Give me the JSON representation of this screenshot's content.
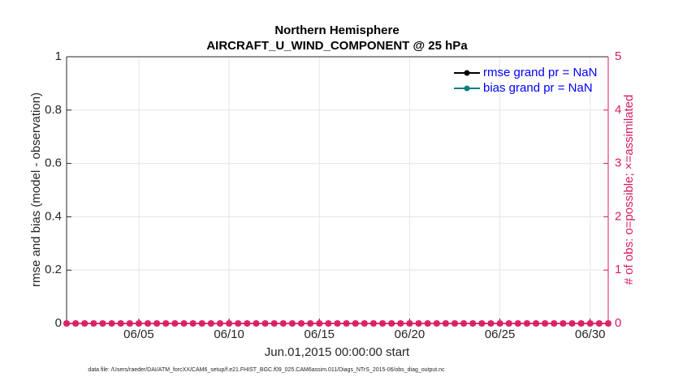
{
  "chart_data": {
    "type": "line",
    "title": "Northern Hemisphere",
    "subtitle": "AIRCRAFT_U_WIND_COMPONENT @ 25 hPa",
    "xlabel": "Jun.01,2015 00:00:00 start",
    "ylabel": "rmse and bias (model - observation)",
    "y2label": "# of obs: o=possible; ×=assimilated",
    "footnote": "data file: /Users/raeder/DAI/ATM_forcXX/CAM6_setup/f.e21.FHIST_BGC.f09_025.CAM6assim.011/Diags_NTrS_2015-06/obs_diag_output.nc",
    "xlim": [
      1,
      31
    ],
    "xticks": [
      {
        "value": 5,
        "label": "06/05"
      },
      {
        "value": 10,
        "label": "06/10"
      },
      {
        "value": 15,
        "label": "06/15"
      },
      {
        "value": 20,
        "label": "06/20"
      },
      {
        "value": 25,
        "label": "06/25"
      },
      {
        "value": 30,
        "label": "06/30"
      }
    ],
    "ylim": [
      0,
      1
    ],
    "yticks": [
      0,
      0.2,
      0.4,
      0.6,
      0.8,
      1
    ],
    "y2lim": [
      0,
      5
    ],
    "y2ticks": [
      0,
      1,
      2,
      3,
      4,
      5
    ],
    "y2color": "#d81b60",
    "grid": true,
    "legend": "northeast",
    "x": [
      1,
      1.5,
      2,
      2.5,
      3,
      3.5,
      4,
      4.5,
      5,
      5.5,
      6,
      6.5,
      7,
      7.5,
      8,
      8.5,
      9,
      9.5,
      10,
      10.5,
      11,
      11.5,
      12,
      12.5,
      13,
      13.5,
      14,
      14.5,
      15,
      15.5,
      16,
      16.5,
      17,
      17.5,
      18,
      18.5,
      19,
      19.5,
      20,
      20.5,
      21,
      21.5,
      22,
      22.5,
      23,
      23.5,
      24,
      24.5,
      25,
      25.5,
      26,
      26.5,
      27,
      27.5,
      28,
      28.5,
      29,
      29.5,
      30,
      30.5,
      31
    ],
    "series": [
      {
        "name": "rmse grand pr = NaN",
        "color": "#000000",
        "marker": "dot",
        "values": [
          null,
          null,
          null,
          null,
          null,
          null,
          null,
          null,
          null,
          null,
          null,
          null,
          null,
          null,
          null,
          null,
          null,
          null,
          null,
          null,
          null,
          null,
          null,
          null,
          null,
          null,
          null,
          null,
          null,
          null,
          null,
          null,
          null,
          null,
          null,
          null,
          null,
          null,
          null,
          null,
          null,
          null,
          null,
          null,
          null,
          null,
          null,
          null,
          null,
          null,
          null,
          null,
          null,
          null,
          null,
          null,
          null,
          null,
          null,
          null,
          null
        ]
      },
      {
        "name": "bias grand pr = NaN",
        "color": "#008080",
        "marker": "dot",
        "values": [
          null,
          null,
          null,
          null,
          null,
          null,
          null,
          null,
          null,
          null,
          null,
          null,
          null,
          null,
          null,
          null,
          null,
          null,
          null,
          null,
          null,
          null,
          null,
          null,
          null,
          null,
          null,
          null,
          null,
          null,
          null,
          null,
          null,
          null,
          null,
          null,
          null,
          null,
          null,
          null,
          null,
          null,
          null,
          null,
          null,
          null,
          null,
          null,
          null,
          null,
          null,
          null,
          null,
          null,
          null,
          null,
          null,
          null,
          null,
          null,
          null
        ]
      },
      {
        "axis": "y2",
        "color": "#d81b60",
        "marker": "circle",
        "values": [
          0,
          0,
          0,
          0,
          0,
          0,
          0,
          0,
          0,
          0,
          0,
          0,
          0,
          0,
          0,
          0,
          0,
          0,
          0,
          0,
          0,
          0,
          0,
          0,
          0,
          0,
          0,
          0,
          0,
          0,
          0,
          0,
          0,
          0,
          0,
          0,
          0,
          0,
          0,
          0,
          0,
          0,
          0,
          0,
          0,
          0,
          0,
          0,
          0,
          0,
          0,
          0,
          0,
          0,
          0,
          0,
          0,
          0,
          0,
          0,
          0
        ]
      },
      {
        "axis": "y2",
        "color": "#d81b60",
        "marker": "star",
        "values": [
          0,
          0,
          0,
          0,
          0,
          0,
          0,
          0,
          0,
          0,
          0,
          0,
          0,
          0,
          0,
          0,
          0,
          0,
          0,
          0,
          0,
          0,
          0,
          0,
          0,
          0,
          0,
          0,
          0,
          0,
          0,
          0,
          0,
          0,
          0,
          0,
          0,
          0,
          0,
          0,
          0,
          0,
          0,
          0,
          0,
          0,
          0,
          0,
          0,
          0,
          0,
          0,
          0,
          0,
          0,
          0,
          0,
          0,
          0,
          0,
          0
        ]
      }
    ]
  }
}
